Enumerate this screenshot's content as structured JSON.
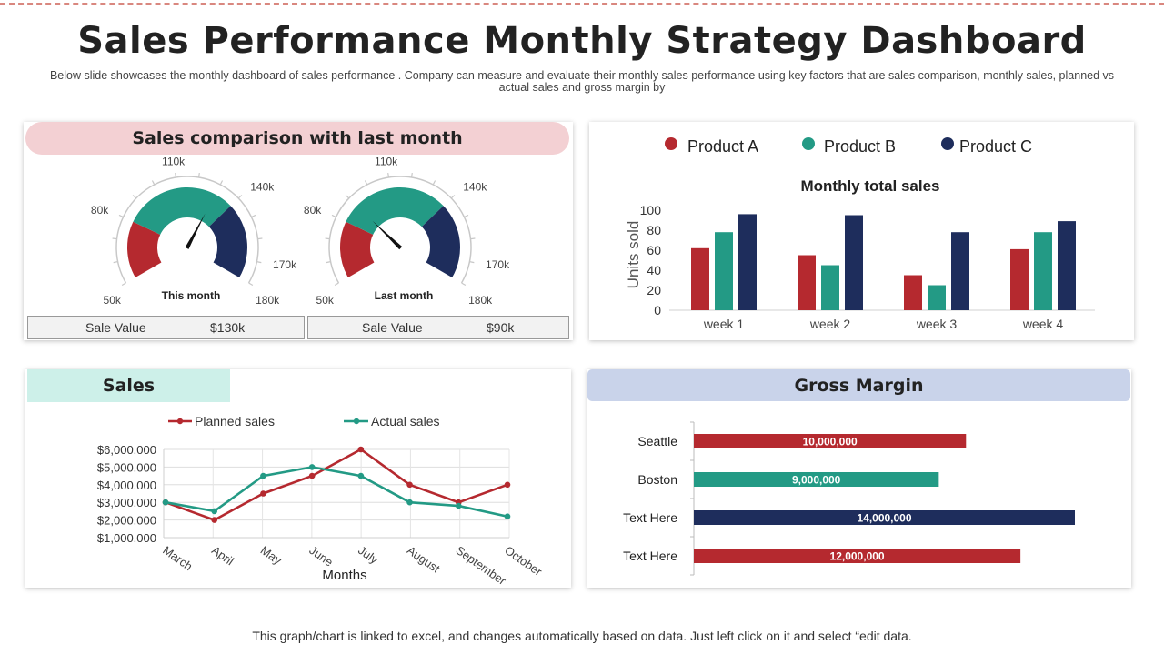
{
  "header": {
    "title": "Sales Performance Monthly Strategy Dashboard",
    "subtitle": "Below slide showcases the monthly dashboard of sales performance . Company can measure and evaluate their monthly sales performance using key factors that are sales comparison, monthly sales, planned vs actual sales and gross margin by"
  },
  "colors": {
    "red": "#b5292f",
    "green": "#239a85",
    "navy": "#1e2d5c",
    "pink_pill": "#f3d0d3",
    "mint_pill": "#cdf0e9",
    "blue_pill": "#c9d3ea"
  },
  "comparison": {
    "heading": "Sales comparison with last month",
    "gauges": [
      {
        "caption": "This month",
        "value": 130,
        "value_label": "Sale Value",
        "value_text": "$130k"
      },
      {
        "caption": "Last month",
        "value": 90,
        "value_label": "Sale Value",
        "value_text": "$90k"
      }
    ],
    "ticks": [
      "50k",
      "80k",
      "110k",
      "140k",
      "170k",
      "180k"
    ]
  },
  "legend": [
    "Product A",
    "Product B",
    "Product C"
  ],
  "sales": {
    "heading": "Sales"
  },
  "gross_margin": {
    "heading": "Gross Margin"
  },
  "footer": "This graph/chart is linked to excel, and changes automatically based on data. Just left click on it and select “edit data.",
  "chart_data": [
    {
      "type": "bar",
      "title": "Monthly total sales",
      "xlabel": "",
      "ylabel": "Units sold",
      "ylim": [
        0,
        100
      ],
      "yticks": [
        "0",
        "20",
        "40",
        "60",
        "80",
        "100"
      ],
      "categories": [
        "week  1",
        "week  2",
        "week  3",
        "week  4"
      ],
      "series": [
        {
          "name": "Product A",
          "values": [
            62,
            55,
            35,
            61
          ]
        },
        {
          "name": "Product B",
          "values": [
            78,
            45,
            25,
            78
          ]
        },
        {
          "name": "Product C",
          "values": [
            96,
            95,
            78,
            89
          ]
        }
      ],
      "legend": "top"
    },
    {
      "type": "line",
      "title": "",
      "xlabel": "Months",
      "ylabel": "",
      "ylim": [
        1000,
        6000
      ],
      "yticks": [
        "$1,000.000",
        "$2,000.000",
        "$3,000.000",
        "$4,000.000",
        "$5,000.000",
        "$6,000.000"
      ],
      "categories": [
        "March",
        "April",
        "May",
        "June",
        "July",
        "August",
        "September",
        "October"
      ],
      "series": [
        {
          "name": "Planned sales",
          "values": [
            3000,
            2000,
            3500,
            4500,
            6000,
            4000,
            3000,
            4000
          ]
        },
        {
          "name": "Actual sales",
          "values": [
            3000,
            2500,
            4500,
            5000,
            4500,
            3000,
            2800,
            2200
          ]
        }
      ],
      "legend": "top"
    },
    {
      "type": "bar",
      "orientation": "horizontal",
      "title": "Gross Margin",
      "categories": [
        "Seattle",
        "Boston",
        "Text Here",
        "Text Here"
      ],
      "values": [
        10000000,
        9000000,
        14000000,
        12000000
      ],
      "value_labels": [
        "10,000,000",
        "9,000,000",
        "14,000,000",
        "12,000,000"
      ],
      "xlim": [
        0,
        14000000
      ]
    }
  ]
}
